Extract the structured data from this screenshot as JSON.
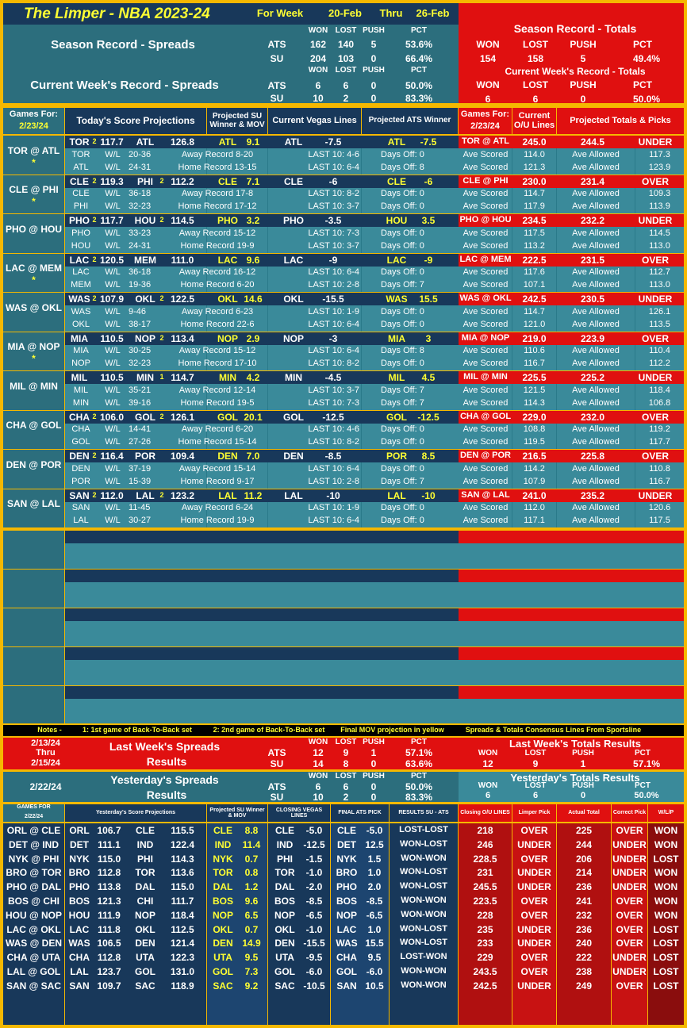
{
  "header": {
    "title": "The Limper - NBA 2023-24",
    "for_week": "For Week",
    "week_start": "20-Feb",
    "thru": "Thru",
    "week_end": "26-Feb",
    "season_spreads": "Season Record - Spreads",
    "current_spreads": "Current Week's Record - Spreads",
    "season_totals": "Season Record - Totals",
    "current_totals": "Current Week's Record - Totals",
    "cols": [
      "WON",
      "LOST",
      "PUSH",
      "PCT"
    ],
    "season_ats": {
      "label": "ATS",
      "won": "162",
      "lost": "140",
      "push": "5",
      "pct": "53.6%"
    },
    "season_su": {
      "label": "SU",
      "won": "204",
      "lost": "103",
      "push": "0",
      "pct": "66.4%"
    },
    "week_ats": {
      "label": "ATS",
      "won": "6",
      "lost": "6",
      "push": "0",
      "pct": "50.0%"
    },
    "week_su": {
      "label": "SU",
      "won": "10",
      "lost": "2",
      "push": "0",
      "pct": "83.3%"
    },
    "season_tot": {
      "won": "154",
      "lost": "158",
      "push": "5",
      "pct": "49.4%"
    },
    "week_tot": {
      "won": "6",
      "lost": "6",
      "push": "0",
      "pct": "50.0%"
    }
  },
  "colheads": {
    "games_for": "Games For:",
    "date": "2/23/24",
    "proj": "Today's Score Projections",
    "su": "Projected SU Winner & MOV",
    "vegas": "Current Vegas Lines",
    "ats": "Projected ATS Winner",
    "current_ou": "Current O/U Lines",
    "totals": "Projected Totals & Picks"
  },
  "games": [
    {
      "matchup": "TOR @ ATL",
      "star": "*",
      "a": "TOR",
      "an": "2",
      "as": "117.7",
      "h": "ATL",
      "hn": "",
      "hs": "126.8",
      "su": "ATL",
      "mov": "9.1",
      "vt": "ATL",
      "vl": "-7.5",
      "at": "ATL",
      "al": "-7.5",
      "tg": "TOR @ ATL",
      "ou": "245.0",
      "pt": "244.5",
      "pick": "UNDER",
      "ar": "20-36",
      "hr": "24-31",
      "away_rec": "Away Record 8-20",
      "home_rec": "Home Record 13-15",
      "al10": "LAST 10: 4-6",
      "hl10": "LAST 10: 6-4",
      "ad": "Days Off: 0",
      "hd": "Days Off: 8",
      "asc": "114.0",
      "hsc": "121.3",
      "aal": "117.3",
      "hal": "123.9"
    },
    {
      "matchup": "CLE @ PHI",
      "star": "*",
      "a": "CLE",
      "an": "2",
      "as": "119.3",
      "h": "PHI",
      "hn": "2",
      "hs": "112.2",
      "su": "CLE",
      "mov": "7.1",
      "vt": "CLE",
      "vl": "-6",
      "at": "CLE",
      "al": "-6",
      "tg": "CLE @ PHI",
      "ou": "230.0",
      "pt": "231.4",
      "pick": "OVER",
      "ar": "36-18",
      "hr": "32-23",
      "away_rec": "Away Record 17-8",
      "home_rec": "Home Record 17-12",
      "al10": "LAST 10: 8-2",
      "hl10": "LAST 10: 3-7",
      "ad": "Days Off: 0",
      "hd": "Days Off: 0",
      "asc": "114.7",
      "hsc": "117.9",
      "aal": "109.3",
      "hal": "113.9"
    },
    {
      "matchup": "PHO @ HOU",
      "star": "",
      "a": "PHO",
      "an": "2",
      "as": "117.7",
      "h": "HOU",
      "hn": "2",
      "hs": "114.5",
      "su": "PHO",
      "mov": "3.2",
      "vt": "PHO",
      "vl": "-3.5",
      "at": "HOU",
      "al": "3.5",
      "tg": "PHO @ HOU",
      "ou": "234.5",
      "pt": "232.2",
      "pick": "UNDER",
      "ar": "33-23",
      "hr": "24-31",
      "away_rec": "Away Record 15-12",
      "home_rec": "Home Record 19-9",
      "al10": "LAST 10: 7-3",
      "hl10": "LAST 10: 3-7",
      "ad": "Days Off: 0",
      "hd": "Days Off: 0",
      "asc": "117.5",
      "hsc": "113.2",
      "aal": "114.5",
      "hal": "113.0"
    },
    {
      "matchup": "LAC @ MEM",
      "star": "*",
      "a": "LAC",
      "an": "2",
      "as": "120.5",
      "h": "MEM",
      "hn": "",
      "hs": "111.0",
      "su": "LAC",
      "mov": "9.6",
      "vt": "LAC",
      "vl": "-9",
      "at": "LAC",
      "al": "-9",
      "tg": "LAC @ MEM",
      "ou": "222.5",
      "pt": "231.5",
      "pick": "OVER",
      "ar": "36-18",
      "hr": "19-36",
      "away_rec": "Away Record 16-12",
      "home_rec": "Home Record 6-20",
      "al10": "LAST 10: 6-4",
      "hl10": "LAST 10: 2-8",
      "ad": "Days Off: 0",
      "hd": "Days Off: 7",
      "asc": "117.6",
      "hsc": "107.1",
      "aal": "112.7",
      "hal": "113.0"
    },
    {
      "matchup": "WAS @ OKL",
      "star": "",
      "a": "WAS",
      "an": "2",
      "as": "107.9",
      "h": "OKL",
      "hn": "2",
      "hs": "122.5",
      "su": "OKL",
      "mov": "14.6",
      "vt": "OKL",
      "vl": "-15.5",
      "at": "WAS",
      "al": "15.5",
      "tg": "WAS @ OKL",
      "ou": "242.5",
      "pt": "230.5",
      "pick": "UNDER",
      "ar": "9-46",
      "hr": "38-17",
      "away_rec": "Away Record 6-23",
      "home_rec": "Home Record 22-6",
      "al10": "LAST 10: 1-9",
      "hl10": "LAST 10: 6-4",
      "ad": "Days Off: 0",
      "hd": "Days Off: 0",
      "asc": "114.7",
      "hsc": "121.0",
      "aal": "126.1",
      "hal": "113.5"
    },
    {
      "matchup": "MIA @ NOP",
      "star": "*",
      "a": "MIA",
      "an": "",
      "as": "110.5",
      "h": "NOP",
      "hn": "2",
      "hs": "113.4",
      "su": "NOP",
      "mov": "2.9",
      "vt": "NOP",
      "vl": "-3",
      "at": "MIA",
      "al": "3",
      "tg": "MIA @ NOP",
      "ou": "219.0",
      "pt": "223.9",
      "pick": "OVER",
      "ar": "30-25",
      "hr": "32-23",
      "away_rec": "Away Record 15-12",
      "home_rec": "Home Record 17-10",
      "al10": "LAST 10: 6-4",
      "hl10": "LAST 10: 8-2",
      "ad": "Days Off: 8",
      "hd": "Days Off: 0",
      "asc": "110.6",
      "hsc": "116.7",
      "aal": "110.4",
      "hal": "112.2"
    },
    {
      "matchup": "MIL @ MIN",
      "star": "",
      "a": "MIL",
      "an": "",
      "as": "110.5",
      "h": "MIN",
      "hn": "1",
      "hs": "114.7",
      "su": "MIN",
      "mov": "4.2",
      "vt": "MIN",
      "vl": "-4.5",
      "at": "MIL",
      "al": "4.5",
      "tg": "MIL @ MIN",
      "ou": "225.5",
      "pt": "225.2",
      "pick": "UNDER",
      "ar": "35-21",
      "hr": "39-16",
      "away_rec": "Away Record 12-14",
      "home_rec": "Home Record 19-5",
      "al10": "LAST 10: 3-7",
      "hl10": "LAST 10: 7-3",
      "ad": "Days Off: 7",
      "hd": "Days Off: 7",
      "asc": "121.5",
      "hsc": "114.3",
      "aal": "118.4",
      "hal": "106.8"
    },
    {
      "matchup": "CHA @ GOL",
      "star": "",
      "a": "CHA",
      "an": "2",
      "as": "106.0",
      "h": "GOL",
      "hn": "2",
      "hs": "126.1",
      "su": "GOL",
      "mov": "20.1",
      "vt": "GOL",
      "vl": "-12.5",
      "at": "GOL",
      "al": "-12.5",
      "tg": "CHA @ GOL",
      "ou": "229.0",
      "pt": "232.0",
      "pick": "OVER",
      "ar": "14-41",
      "hr": "27-26",
      "away_rec": "Away Record 6-20",
      "home_rec": "Home Record 15-14",
      "al10": "LAST 10: 4-6",
      "hl10": "LAST 10: 8-2",
      "ad": "Days Off: 0",
      "hd": "Days Off: 0",
      "asc": "108.8",
      "hsc": "119.5",
      "aal": "119.2",
      "hal": "117.7"
    },
    {
      "matchup": "DEN @ POR",
      "star": "",
      "a": "DEN",
      "an": "2",
      "as": "116.4",
      "h": "POR",
      "hn": "",
      "hs": "109.4",
      "su": "DEN",
      "mov": "7.0",
      "vt": "DEN",
      "vl": "-8.5",
      "at": "POR",
      "al": "8.5",
      "tg": "DEN @ POR",
      "ou": "216.5",
      "pt": "225.8",
      "pick": "OVER",
      "ar": "37-19",
      "hr": "15-39",
      "away_rec": "Away Record 15-14",
      "home_rec": "Home Record 9-17",
      "al10": "LAST 10: 6-4",
      "hl10": "LAST 10: 2-8",
      "ad": "Days Off: 0",
      "hd": "Days Off: 7",
      "asc": "114.2",
      "hsc": "107.9",
      "aal": "110.8",
      "hal": "116.7"
    },
    {
      "matchup": "SAN @ LAL",
      "star": "",
      "a": "SAN",
      "an": "2",
      "as": "112.0",
      "h": "LAL",
      "hn": "2",
      "hs": "123.2",
      "su": "LAL",
      "mov": "11.2",
      "vt": "LAL",
      "vl": "-10",
      "at": "LAL",
      "al": "-10",
      "tg": "SAN @ LAL",
      "ou": "241.0",
      "pt": "235.2",
      "pick": "UNDER",
      "ar": "11-45",
      "hr": "30-27",
      "away_rec": "Away Record 6-24",
      "home_rec": "Home Record 19-9",
      "al10": "LAST 10: 1-9",
      "hl10": "LAST 10: 6-4",
      "ad": "Days Off: 0",
      "hd": "Days Off: 0",
      "asc": "112.0",
      "hsc": "117.1",
      "aal": "120.6",
      "hal": "117.5"
    }
  ],
  "labels": {
    "wl": "W/L",
    "ave_scored": "Ave Scored",
    "ave_allowed": "Ave Allowed"
  },
  "notes": {
    "n0": "Notes -",
    "n1": "1: 1st game of Back-To-Back set",
    "n2": "2: 2nd game of Back-To-Back set",
    "n3": "Final MOV projection in yellow",
    "n4": "Spreads & Totals Consensus Lines From Sportsline"
  },
  "last_week": {
    "d1": "2/13/24",
    "d2": "Thru",
    "d3": "2/15/24",
    "title1": "Last Week's Spreads",
    "title2": "Results",
    "ats": {
      "won": "12",
      "lost": "9",
      "push": "1",
      "pct": "57.1%"
    },
    "su": {
      "won": "14",
      "lost": "8",
      "push": "0",
      "pct": "63.6%"
    },
    "tot_title": "Last Week's Totals Results",
    "tot": {
      "won": "12",
      "lost": "9",
      "push": "1",
      "pct": "57.1%"
    }
  },
  "yesterday": {
    "date": "2/22/24",
    "title1": "Yesterday's Spreads",
    "title2": "Results",
    "ats": {
      "won": "6",
      "lost": "6",
      "push": "0",
      "pct": "50.0%"
    },
    "su": {
      "won": "10",
      "lost": "2",
      "push": "0",
      "pct": "83.3%"
    },
    "tot_title": "Yesterday's Totals Results",
    "tot": {
      "won": "6",
      "lost": "6",
      "push": "0",
      "pct": "50.0%"
    }
  },
  "yheads": {
    "games_for": "GAMES FOR",
    "date": "2/22/24",
    "proj": "Yesterday's Score Projections",
    "su": "Projected SU Winner & MOV",
    "closing": "CLOSING VEGAS LINES",
    "final": "FINAL ATS PICK",
    "results": "RESULTS SU - ATS",
    "ou": "Closing O/U LINES",
    "limper": "Limper Pick",
    "actual": "Actual Total",
    "correct": "Correct Pick",
    "wlp": "W/L/P"
  },
  "yrows": [
    {
      "g": "ORL @ CLE",
      "a": "ORL",
      "as": "106.7",
      "h": "CLE",
      "hs": "115.5",
      "su": "CLE",
      "mov": "8.8",
      "vt": "CLE",
      "vl": "-5.0",
      "ft": "CLE",
      "fl": "-5.0",
      "res": "LOST-LOST",
      "ou": "218",
      "lp": "OVER",
      "act": "225",
      "cp": "OVER",
      "wl": "WON"
    },
    {
      "g": "DET @ IND",
      "a": "DET",
      "as": "111.1",
      "h": "IND",
      "hs": "122.4",
      "su": "IND",
      "mov": "11.4",
      "vt": "IND",
      "vl": "-12.5",
      "ft": "DET",
      "fl": "12.5",
      "res": "WON-LOST",
      "ou": "246",
      "lp": "UNDER",
      "act": "244",
      "cp": "UNDER",
      "wl": "WON"
    },
    {
      "g": "NYK @ PHI",
      "a": "NYK",
      "as": "115.0",
      "h": "PHI",
      "hs": "114.3",
      "su": "NYK",
      "mov": "0.7",
      "vt": "PHI",
      "vl": "-1.5",
      "ft": "NYK",
      "fl": "1.5",
      "res": "WON-WON",
      "ou": "228.5",
      "lp": "OVER",
      "act": "206",
      "cp": "UNDER",
      "wl": "LOST"
    },
    {
      "g": "BRO @ TOR",
      "a": "BRO",
      "as": "112.8",
      "h": "TOR",
      "hs": "113.6",
      "su": "TOR",
      "mov": "0.8",
      "vt": "TOR",
      "vl": "-1.0",
      "ft": "BRO",
      "fl": "1.0",
      "res": "WON-LOST",
      "ou": "231",
      "lp": "UNDER",
      "act": "214",
      "cp": "UNDER",
      "wl": "WON"
    },
    {
      "g": "PHO @ DAL",
      "a": "PHO",
      "as": "113.8",
      "h": "DAL",
      "hs": "115.0",
      "su": "DAL",
      "mov": "1.2",
      "vt": "DAL",
      "vl": "-2.0",
      "ft": "PHO",
      "fl": "2.0",
      "res": "WON-LOST",
      "ou": "245.5",
      "lp": "UNDER",
      "act": "236",
      "cp": "UNDER",
      "wl": "WON"
    },
    {
      "g": "BOS @ CHI",
      "a": "BOS",
      "as": "121.3",
      "h": "CHI",
      "hs": "111.7",
      "su": "BOS",
      "mov": "9.6",
      "vt": "BOS",
      "vl": "-8.5",
      "ft": "BOS",
      "fl": "-8.5",
      "res": "WON-WON",
      "ou": "223.5",
      "lp": "OVER",
      "act": "241",
      "cp": "OVER",
      "wl": "WON"
    },
    {
      "g": "HOU @ NOP",
      "a": "HOU",
      "as": "111.9",
      "h": "NOP",
      "hs": "118.4",
      "su": "NOP",
      "mov": "6.5",
      "vt": "NOP",
      "vl": "-6.5",
      "ft": "NOP",
      "fl": "-6.5",
      "res": "WON-WON",
      "ou": "228",
      "lp": "OVER",
      "act": "232",
      "cp": "OVER",
      "wl": "WON"
    },
    {
      "g": "LAC @ OKL",
      "a": "LAC",
      "as": "111.8",
      "h": "OKL",
      "hs": "112.5",
      "su": "OKL",
      "mov": "0.7",
      "vt": "OKL",
      "vl": "-1.0",
      "ft": "LAC",
      "fl": "1.0",
      "res": "WON-LOST",
      "ou": "235",
      "lp": "UNDER",
      "act": "236",
      "cp": "OVER",
      "wl": "LOST"
    },
    {
      "g": "WAS @ DEN",
      "a": "WAS",
      "as": "106.5",
      "h": "DEN",
      "hs": "121.4",
      "su": "DEN",
      "mov": "14.9",
      "vt": "DEN",
      "vl": "-15.5",
      "ft": "WAS",
      "fl": "15.5",
      "res": "WON-LOST",
      "ou": "233",
      "lp": "UNDER",
      "act": "240",
      "cp": "OVER",
      "wl": "LOST"
    },
    {
      "g": "CHA @ UTA",
      "a": "CHA",
      "as": "112.8",
      "h": "UTA",
      "hs": "122.3",
      "su": "UTA",
      "mov": "9.5",
      "vt": "UTA",
      "vl": "-9.5",
      "ft": "CHA",
      "fl": "9.5",
      "res": "LOST-WON",
      "ou": "229",
      "lp": "OVER",
      "act": "222",
      "cp": "UNDER",
      "wl": "LOST"
    },
    {
      "g": "LAL @ GOL",
      "a": "LAL",
      "as": "123.7",
      "h": "GOL",
      "hs": "131.0",
      "su": "GOL",
      "mov": "7.3",
      "vt": "GOL",
      "vl": "-6.0",
      "ft": "GOL",
      "fl": "-6.0",
      "res": "WON-WON",
      "ou": "243.5",
      "lp": "OVER",
      "act": "238",
      "cp": "UNDER",
      "wl": "LOST"
    },
    {
      "g": "SAN @ SAC",
      "a": "SAN",
      "as": "109.7",
      "h": "SAC",
      "hs": "118.9",
      "su": "SAC",
      "mov": "9.2",
      "vt": "SAC",
      "vl": "-10.5",
      "ft": "SAN",
      "fl": "10.5",
      "res": "WON-WON",
      "ou": "242.5",
      "lp": "UNDER",
      "act": "249",
      "cp": "OVER",
      "wl": "LOST"
    }
  ]
}
